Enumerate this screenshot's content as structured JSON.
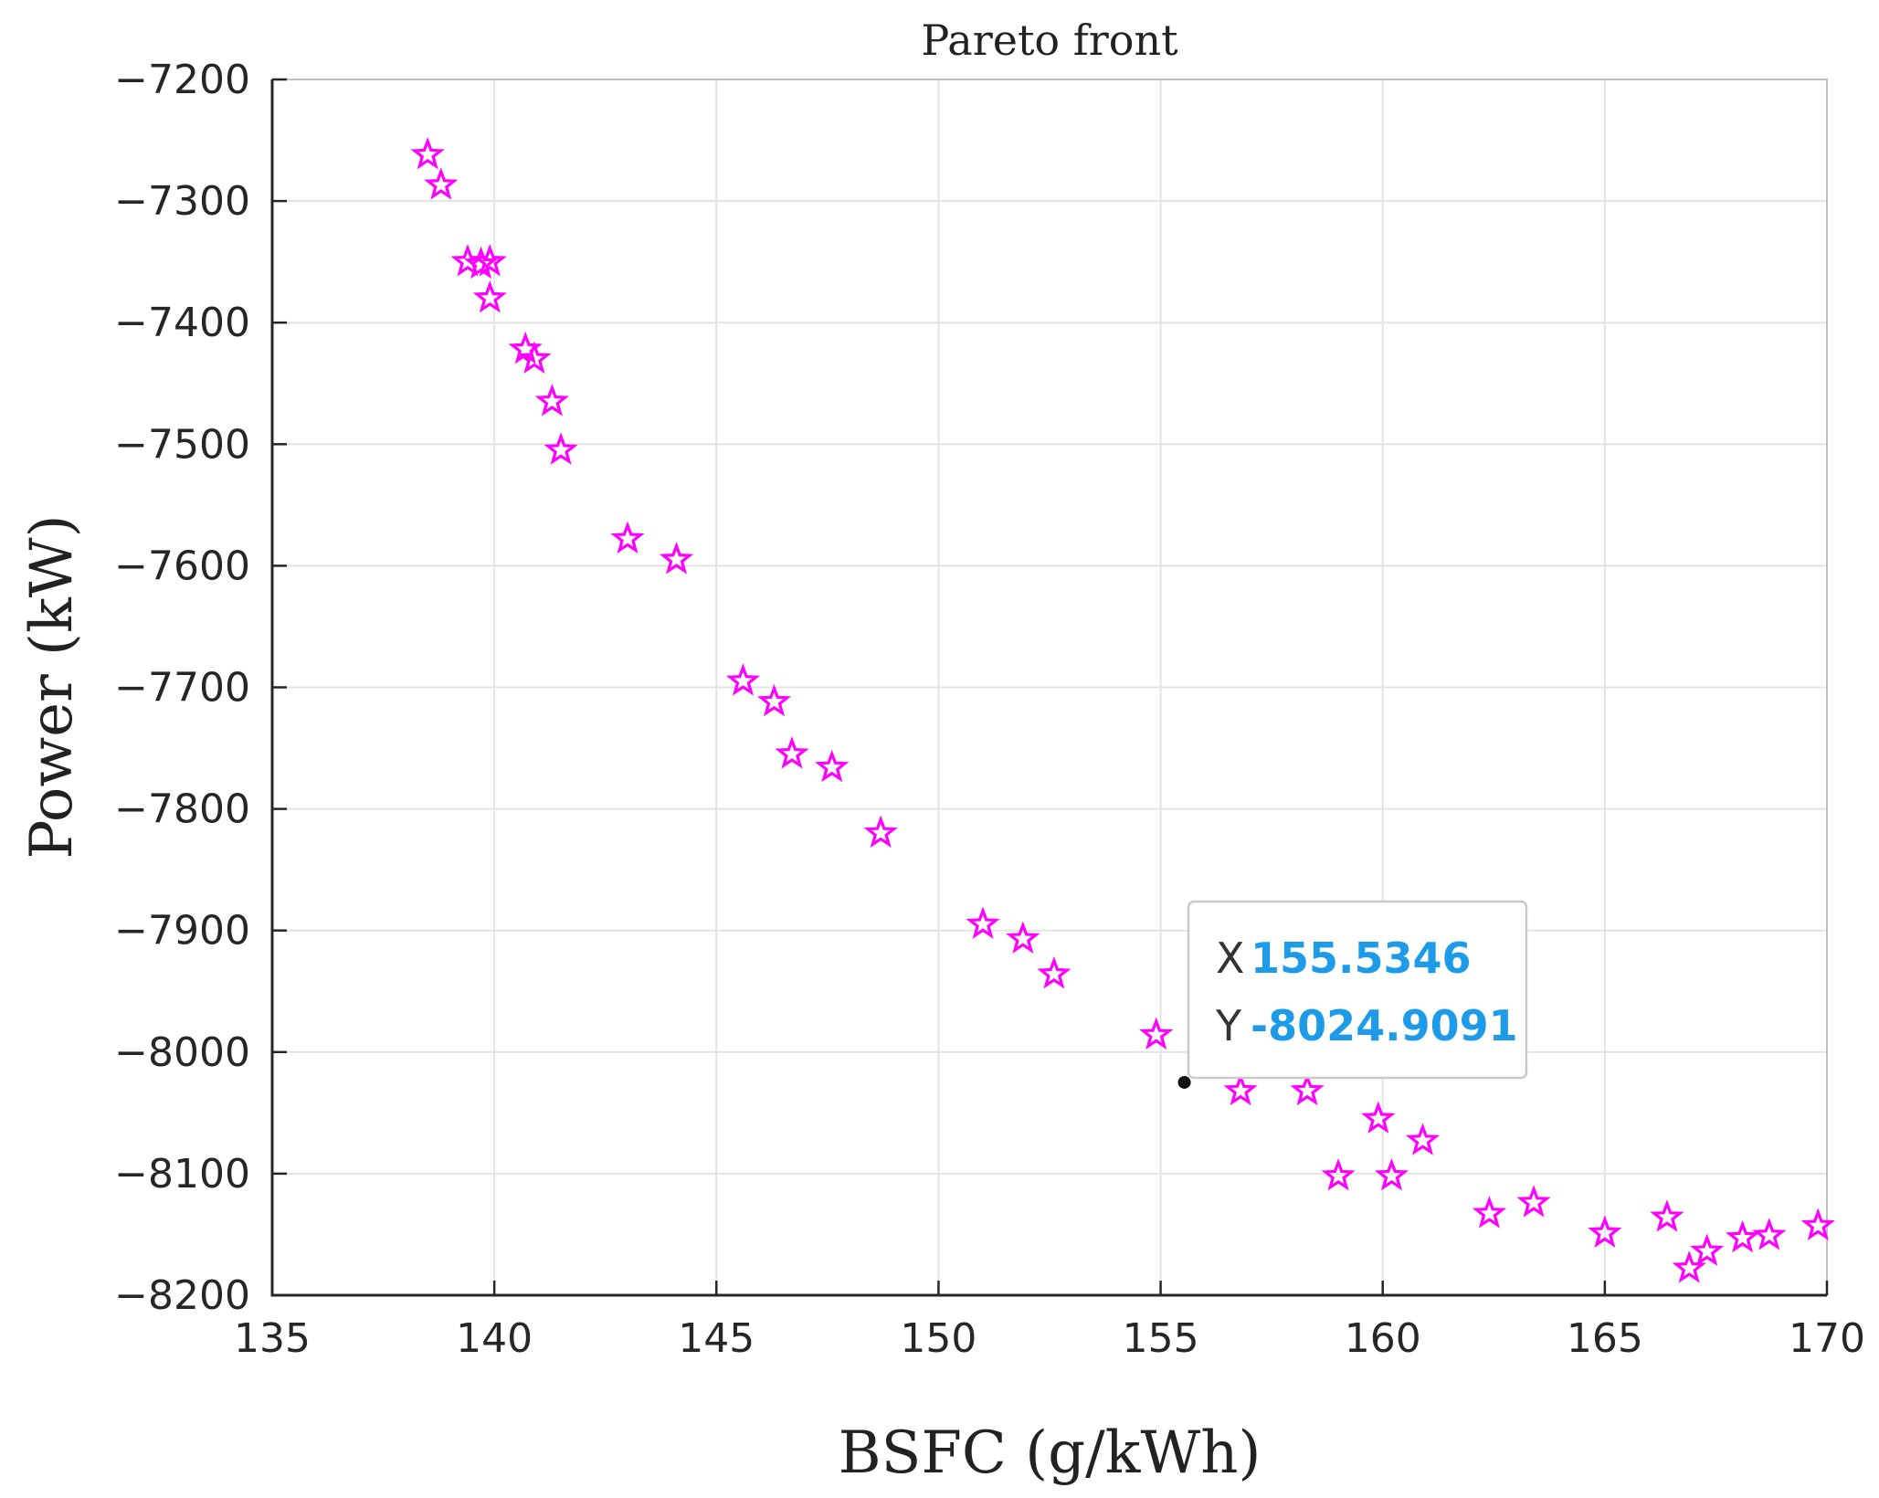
{
  "chart_data": {
    "type": "scatter",
    "title": "Pareto front",
    "xlabel": "BSFC (g/kWh)",
    "ylabel": "Power (kW)",
    "xlim": [
      135,
      170
    ],
    "ylim": [
      -8200,
      -7200
    ],
    "xticks": [
      135,
      140,
      145,
      150,
      155,
      160,
      165,
      170
    ],
    "yticks": [
      -7200,
      -7300,
      -7400,
      -7500,
      -7600,
      -7700,
      -7800,
      -7900,
      -8000,
      -8100,
      -8200
    ],
    "grid": true,
    "marker": "pentagram",
    "marker_color": "#ff00ff",
    "points": [
      [
        138.5,
        -7262
      ],
      [
        138.8,
        -7287
      ],
      [
        139.4,
        -7350
      ],
      [
        139.7,
        -7352
      ],
      [
        139.9,
        -7350
      ],
      [
        139.9,
        -7380
      ],
      [
        140.7,
        -7422
      ],
      [
        140.9,
        -7430
      ],
      [
        141.3,
        -7465
      ],
      [
        141.5,
        -7505
      ],
      [
        143.0,
        -7578
      ],
      [
        144.1,
        -7595
      ],
      [
        145.6,
        -7695
      ],
      [
        146.3,
        -7712
      ],
      [
        146.7,
        -7755
      ],
      [
        147.6,
        -7766
      ],
      [
        148.7,
        -7820
      ],
      [
        151.0,
        -7895
      ],
      [
        151.9,
        -7907
      ],
      [
        152.6,
        -7936
      ],
      [
        154.9,
        -7986
      ],
      [
        156.8,
        -8032
      ],
      [
        158.3,
        -8032
      ],
      [
        159.0,
        -8102
      ],
      [
        159.9,
        -8055
      ],
      [
        160.2,
        -8102
      ],
      [
        160.9,
        -8073
      ],
      [
        162.4,
        -8133
      ],
      [
        163.4,
        -8124
      ],
      [
        165.0,
        -8149
      ],
      [
        166.4,
        -8136
      ],
      [
        166.9,
        -8178
      ],
      [
        167.3,
        -8164
      ],
      [
        168.1,
        -8153
      ],
      [
        168.7,
        -8151
      ],
      [
        169.8,
        -8143
      ]
    ],
    "datatip": {
      "x_key": "X",
      "x_value": "155.5346",
      "y_key": "Y",
      "y_value": "-8024.9091",
      "point": [
        155.5346,
        -8024.9091
      ]
    }
  }
}
